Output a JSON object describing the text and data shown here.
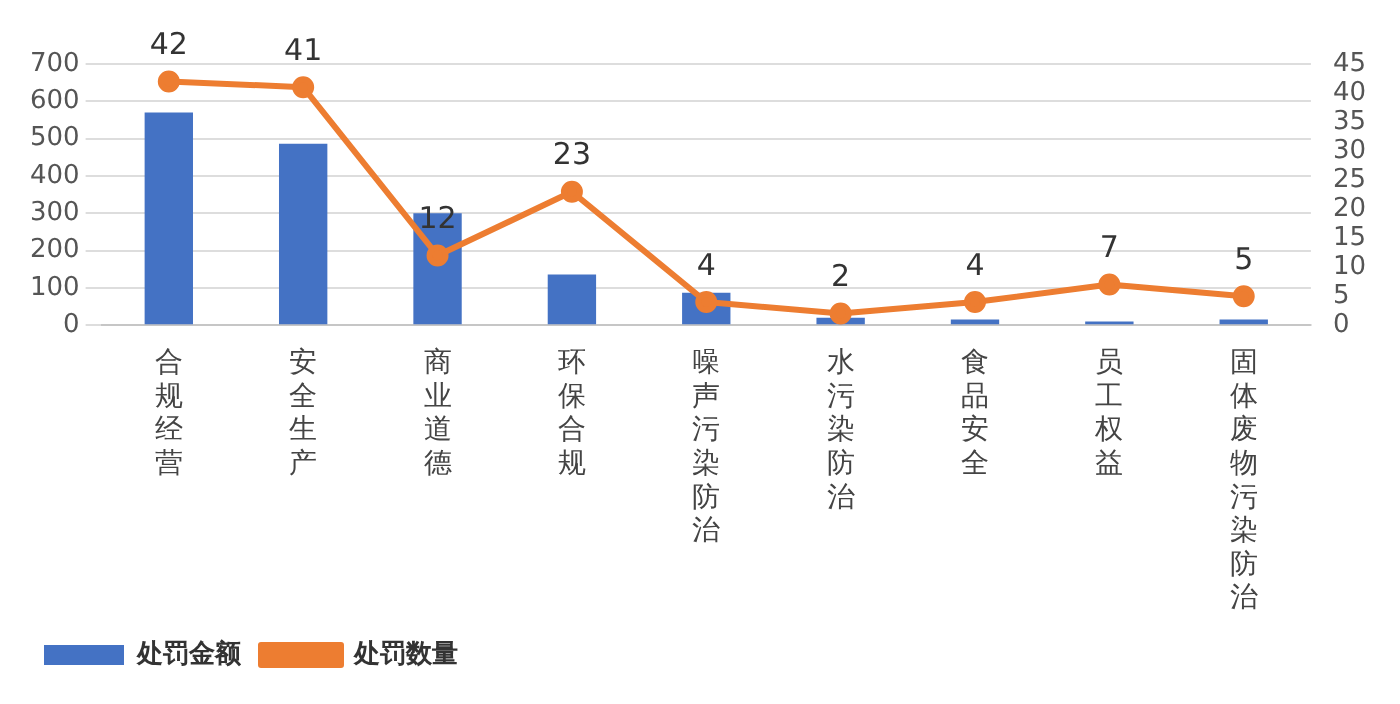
{
  "chart_data": {
    "type": "bar",
    "categories": [
      "合规经营",
      "安全生产",
      "商业道德",
      "环保合规",
      "噪声污染防治",
      "水污染防治",
      "食品安全",
      "员工权益",
      "固体废物污染防治"
    ],
    "series": [
      {
        "name": "处罚金额",
        "color": "#4472c4",
        "values": [
          570,
          486,
          300,
          136,
          87,
          20,
          15,
          10,
          15
        ]
      },
      {
        "name": "处罚数量",
        "type": "line",
        "axis": "y2",
        "color": "#ed7d31",
        "marker": "circle",
        "values": [
          42,
          41,
          12,
          23,
          4,
          2,
          4,
          7,
          5
        ],
        "value_labels": [
          "42",
          "41",
          "12",
          "23",
          "4",
          "2",
          "4",
          "7",
          "5"
        ]
      }
    ],
    "ylim": [
      0,
      700
    ],
    "yticks": [
      0,
      100,
      200,
      300,
      400,
      500,
      600,
      700
    ],
    "y2lim": [
      0,
      45
    ],
    "y2ticks": [
      0,
      5,
      10,
      15,
      20,
      25,
      30,
      35,
      40,
      45
    ],
    "grid": "y",
    "legend": "bottom left"
  }
}
